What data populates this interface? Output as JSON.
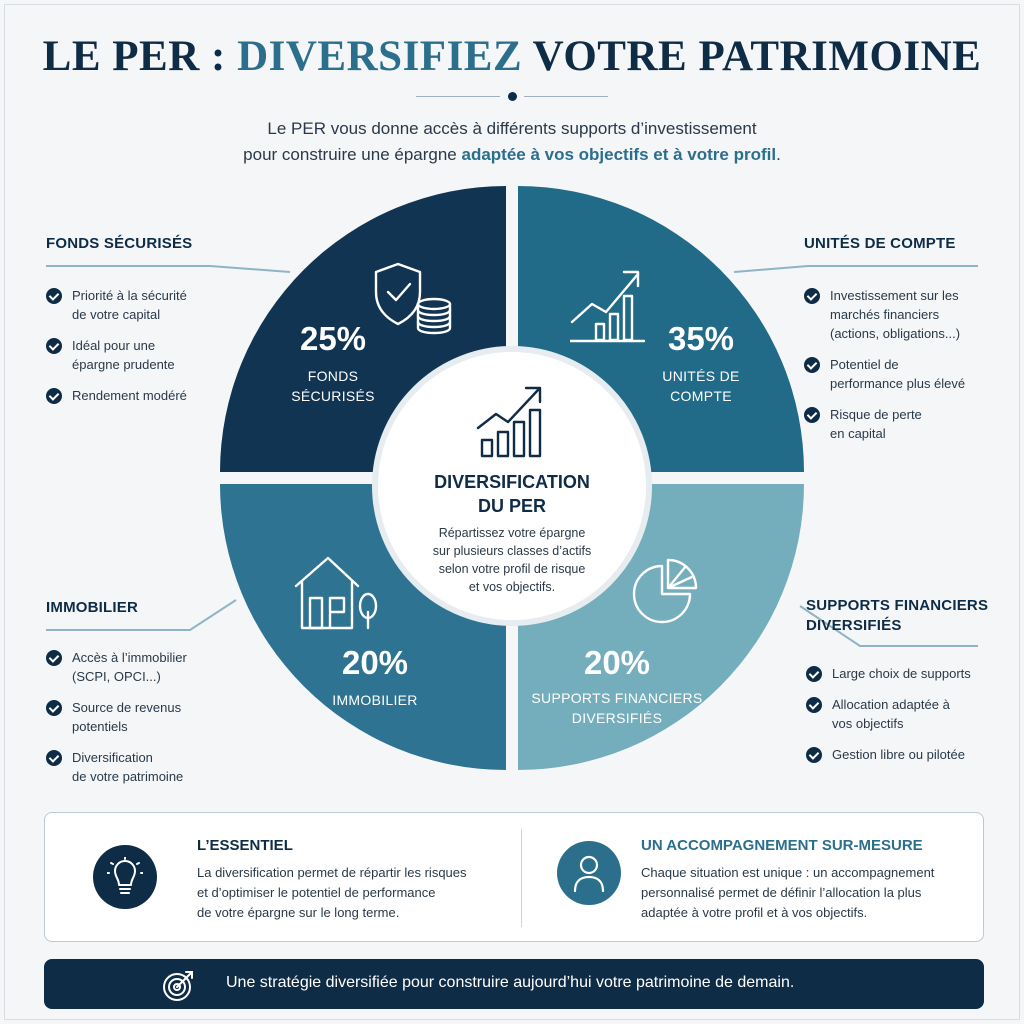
{
  "header": {
    "title_part1": "LE PER : ",
    "title_accent": "DIVERSIFIEZ",
    "title_part2": " VOTRE PATRIMOINE",
    "intro_line1": "Le PER vous donne accès à différents supports d’investissement",
    "intro_line2_plain": "pour construire une épargne ",
    "intro_line2_highlight": "adaptée à vos objectifs et à votre profil",
    "intro_line2_end": "."
  },
  "colors": {
    "navy": "#0f2c46",
    "teal": "#2b6f8d",
    "fonds_securises": "#103452",
    "unites_de_compte": "#216a88",
    "immobilier": "#2e7391",
    "supports_diversifies": "#74aebd"
  },
  "chart_data": {
    "type": "pie",
    "categories": [
      "FONDS SÉCURISÉS",
      "UNITÉS DE COMPTE",
      "IMMOBILIER",
      "SUPPORTS FINANCIERS DIVERSIFIÉS"
    ],
    "values": [
      25,
      35,
      20,
      20
    ],
    "value_labels": [
      "25%",
      "35%",
      "20%",
      "20%"
    ],
    "center_title": "DIVERSIFICATION DU PER",
    "center_text": "Répartissez votre épargne sur plusieurs classes d’actifs selon votre profil de risque et vos objectifs."
  },
  "segments": {
    "fonds": {
      "pct": "25%",
      "label_l1": "FONDS",
      "label_l2": "SÉCURISÉS",
      "icon": "shield-coins-icon"
    },
    "uc": {
      "pct": "35%",
      "label_l1": "UNITÉS DE",
      "label_l2": "COMPTE",
      "icon": "growth-chart-icon"
    },
    "immo": {
      "pct": "20%",
      "label_l1": "IMMOBILIER",
      "icon": "house-icon"
    },
    "supports": {
      "pct": "20%",
      "label_l1": "SUPPORTS FINANCIERS",
      "label_l2": "DIVERSIFIÉS",
      "icon": "pie-chart-icon"
    }
  },
  "center": {
    "title_l1": "DIVERSIFICATION",
    "title_l2": "DU PER",
    "text_l1": "Répartissez votre épargne",
    "text_l2": "sur plusieurs classes d’actifs",
    "text_l3": "selon votre profil de risque",
    "text_l4": "et vos objectifs.",
    "icon": "bar-chart-arrow-icon"
  },
  "panels": {
    "fonds": {
      "heading": "FONDS SÉCURISÉS",
      "items": [
        {
          "l1": "Priorité à la sécurité",
          "l2": "de votre capital"
        },
        {
          "l1": "Idéal pour une",
          "l2": "épargne prudente"
        },
        {
          "l1": "Rendement modéré",
          "l2": ""
        }
      ]
    },
    "uc": {
      "heading": "UNITÉS DE COMPTE",
      "items": [
        {
          "l1": "Investissement sur les",
          "l2": "marchés financiers",
          "l3": "(actions, obligations...)"
        },
        {
          "l1": "Potentiel de",
          "l2": "performance plus élevé"
        },
        {
          "l1": "Risque de perte",
          "l2": "en capital"
        }
      ]
    },
    "immo": {
      "heading": "IMMOBILIER",
      "items": [
        {
          "l1": "Accès à l’immobilier",
          "l2": "(SCPI, OPCI...)"
        },
        {
          "l1": "Source de revenus",
          "l2": "potentiels"
        },
        {
          "l1": "Diversification",
          "l2": "de votre patrimoine"
        }
      ]
    },
    "supports": {
      "heading_l1": "SUPPORTS FINANCIERS",
      "heading_l2": "DIVERSIFIÉS",
      "items": [
        {
          "l1": "Large choix de supports",
          "l2": ""
        },
        {
          "l1": "Allocation adaptée à",
          "l2": "vos objectifs"
        },
        {
          "l1": "Gestion libre ou pilotée",
          "l2": ""
        }
      ]
    }
  },
  "essentiel": {
    "icon": "lightbulb-icon",
    "heading": "L’ESSENTIEL",
    "l1": "La diversification permet de répartir les risques",
    "l2": "et d’optimiser le potentiel de performance",
    "l3": "de votre épargne sur le long terme."
  },
  "accompagnement": {
    "icon": "user-icon",
    "heading": "UN ACCOMPAGNEMENT SUR-MESURE",
    "l1": "Chaque situation est unique : un accompagnement",
    "l2": "personnalisé permet de définir l’allocation la plus",
    "l3": "adaptée à votre profil et à vos objectifs."
  },
  "footer": {
    "icon": "target-icon",
    "text": "Une stratégie diversifiée pour construire aujourd’hui votre patrimoine de demain."
  }
}
